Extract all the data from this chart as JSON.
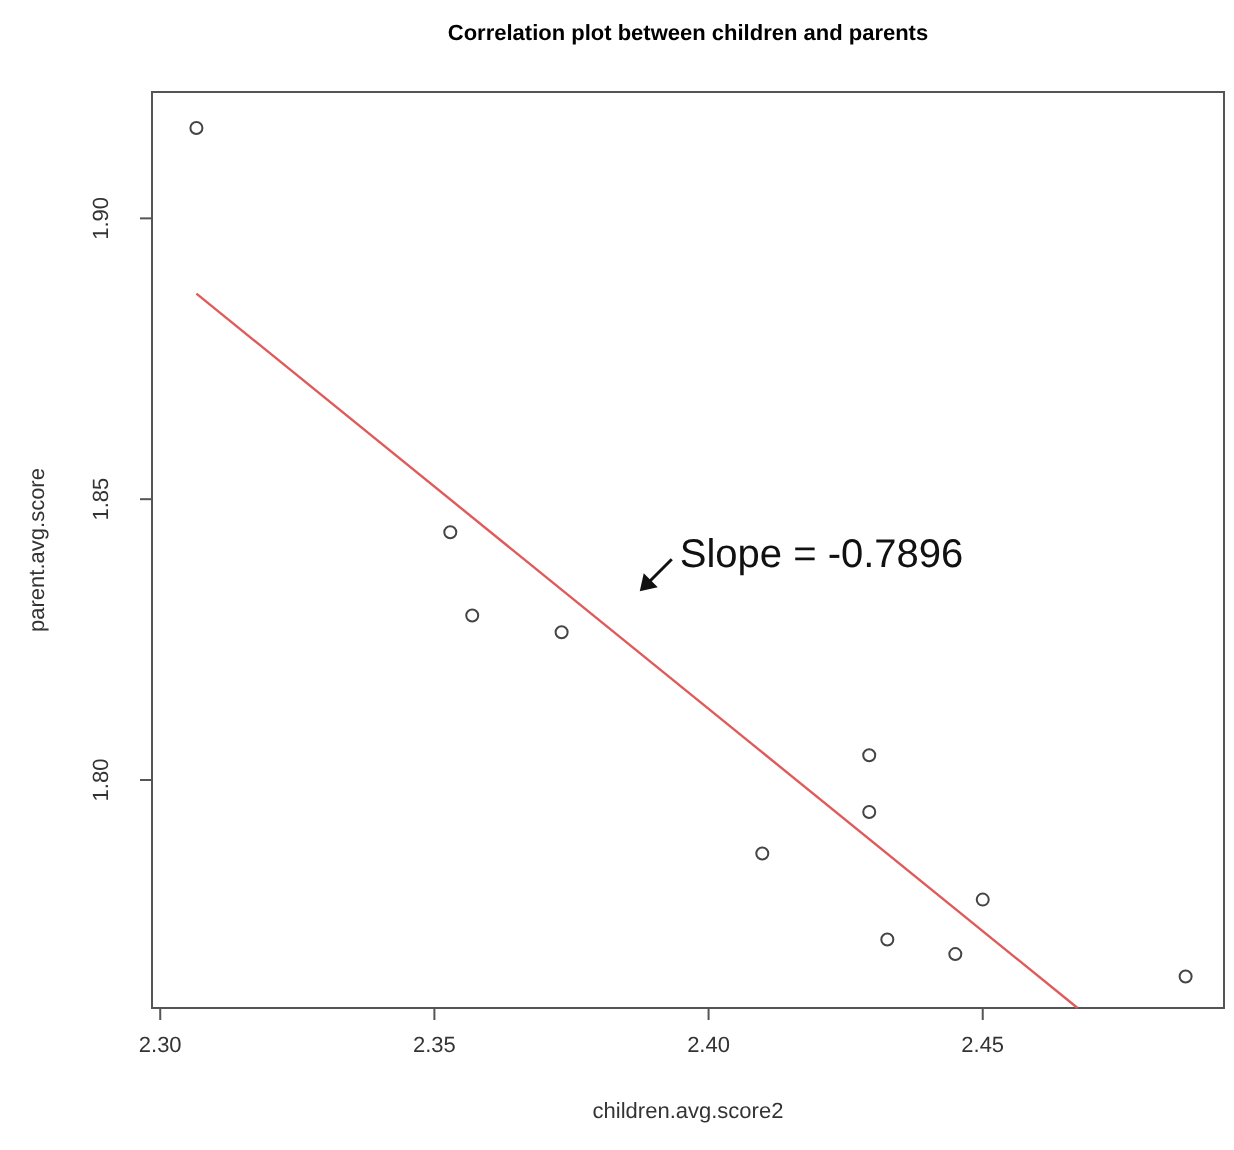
{
  "chart_data": {
    "type": "scatter",
    "title": "Correlation plot between children and parents",
    "xlabel": "children.avg.score2",
    "ylabel": "parent.avg.score",
    "xlim": [
      2.2985,
      2.494
    ],
    "ylim": [
      1.7594,
      1.9225
    ],
    "xticks": [
      {
        "value": 2.3,
        "label": "2.30"
      },
      2.35,
      {
        "value": 2.4,
        "label": "2.40"
      },
      2.45
    ],
    "yticks": [
      {
        "value": 1.8,
        "label": "1.80"
      },
      1.85,
      {
        "value": 1.9,
        "label": "1.90"
      }
    ],
    "marker": "circle",
    "grid": false,
    "series": [
      {
        "color": "#444444",
        "x": [
          2.3066,
          2.3529,
          2.3569,
          2.3732,
          2.4098,
          2.4293,
          2.4293,
          2.4326,
          2.445,
          2.45,
          2.487
        ],
        "values": [
          1.9161,
          1.8441,
          1.8293,
          1.8263,
          1.7869,
          1.8044,
          1.7943,
          1.7716,
          1.769,
          1.7787,
          1.765
        ]
      },
      {
        "type": "line",
        "color": "#e05a5a",
        "marker": "none",
        "x": [
          2.3066,
          2.4673
        ],
        "values": [
          1.8866,
          1.7594
        ]
      }
    ],
    "annotations": [
      "Slope = -0.7896"
    ]
  }
}
